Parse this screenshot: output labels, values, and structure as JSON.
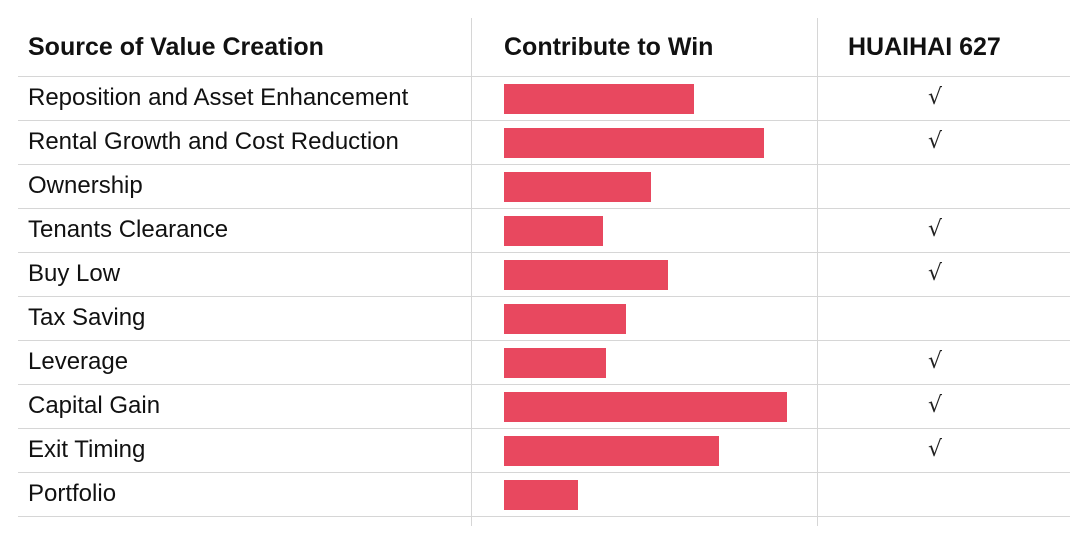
{
  "header": {
    "col1": "Source of Value Creation",
    "col2": "Contribute to Win",
    "col3": "HUAIHAI 627"
  },
  "check_symbol": "√",
  "bar_color": "#e8485f",
  "chart_data": {
    "type": "bar",
    "orientation": "horizontal",
    "categories": [
      "Reposition and Asset Enhancement",
      "Rental Growth and Cost Reduction",
      "Ownership",
      "Tenants Clearance",
      "Buy Low",
      "Tax Saving",
      "Leverage",
      "Capital Gain",
      "Exit Timing",
      "Portfolio"
    ],
    "values": [
      67,
      92,
      52,
      35,
      58,
      43,
      36,
      100,
      76,
      26
    ],
    "huaihai_627": [
      true,
      true,
      false,
      true,
      true,
      false,
      true,
      true,
      true,
      false
    ],
    "xlim": [
      0,
      100
    ]
  }
}
